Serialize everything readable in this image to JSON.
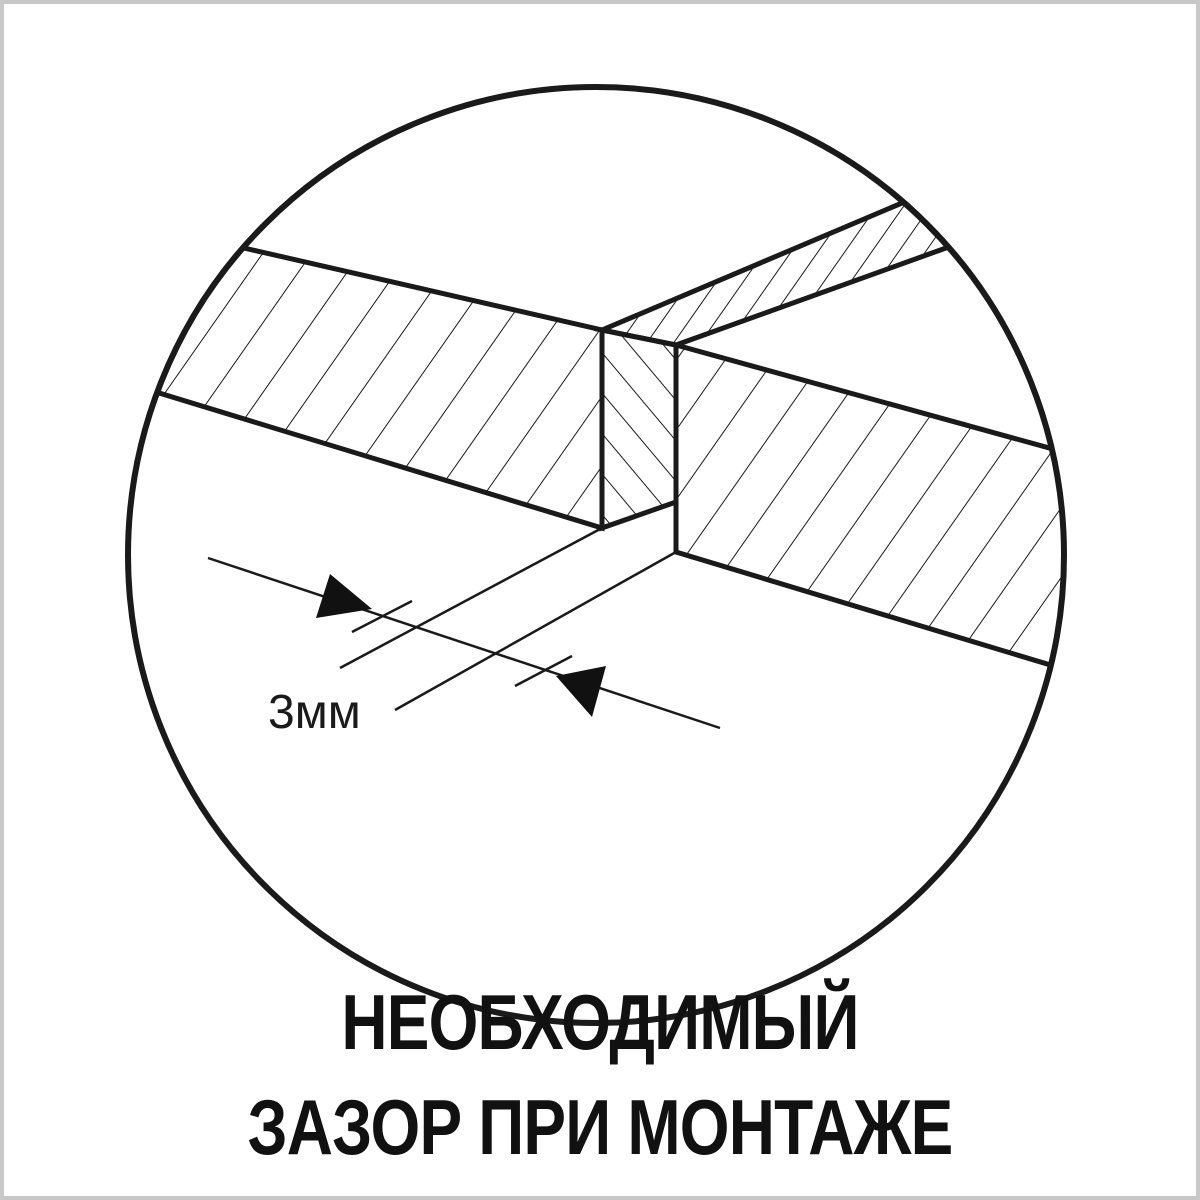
{
  "diagram": {
    "gap_label": "3мм",
    "caption_line1": "НЕОБХОДИМЫЙ",
    "caption_line2": "ЗАЗОР ПРИ МОНТАЖЕ"
  }
}
